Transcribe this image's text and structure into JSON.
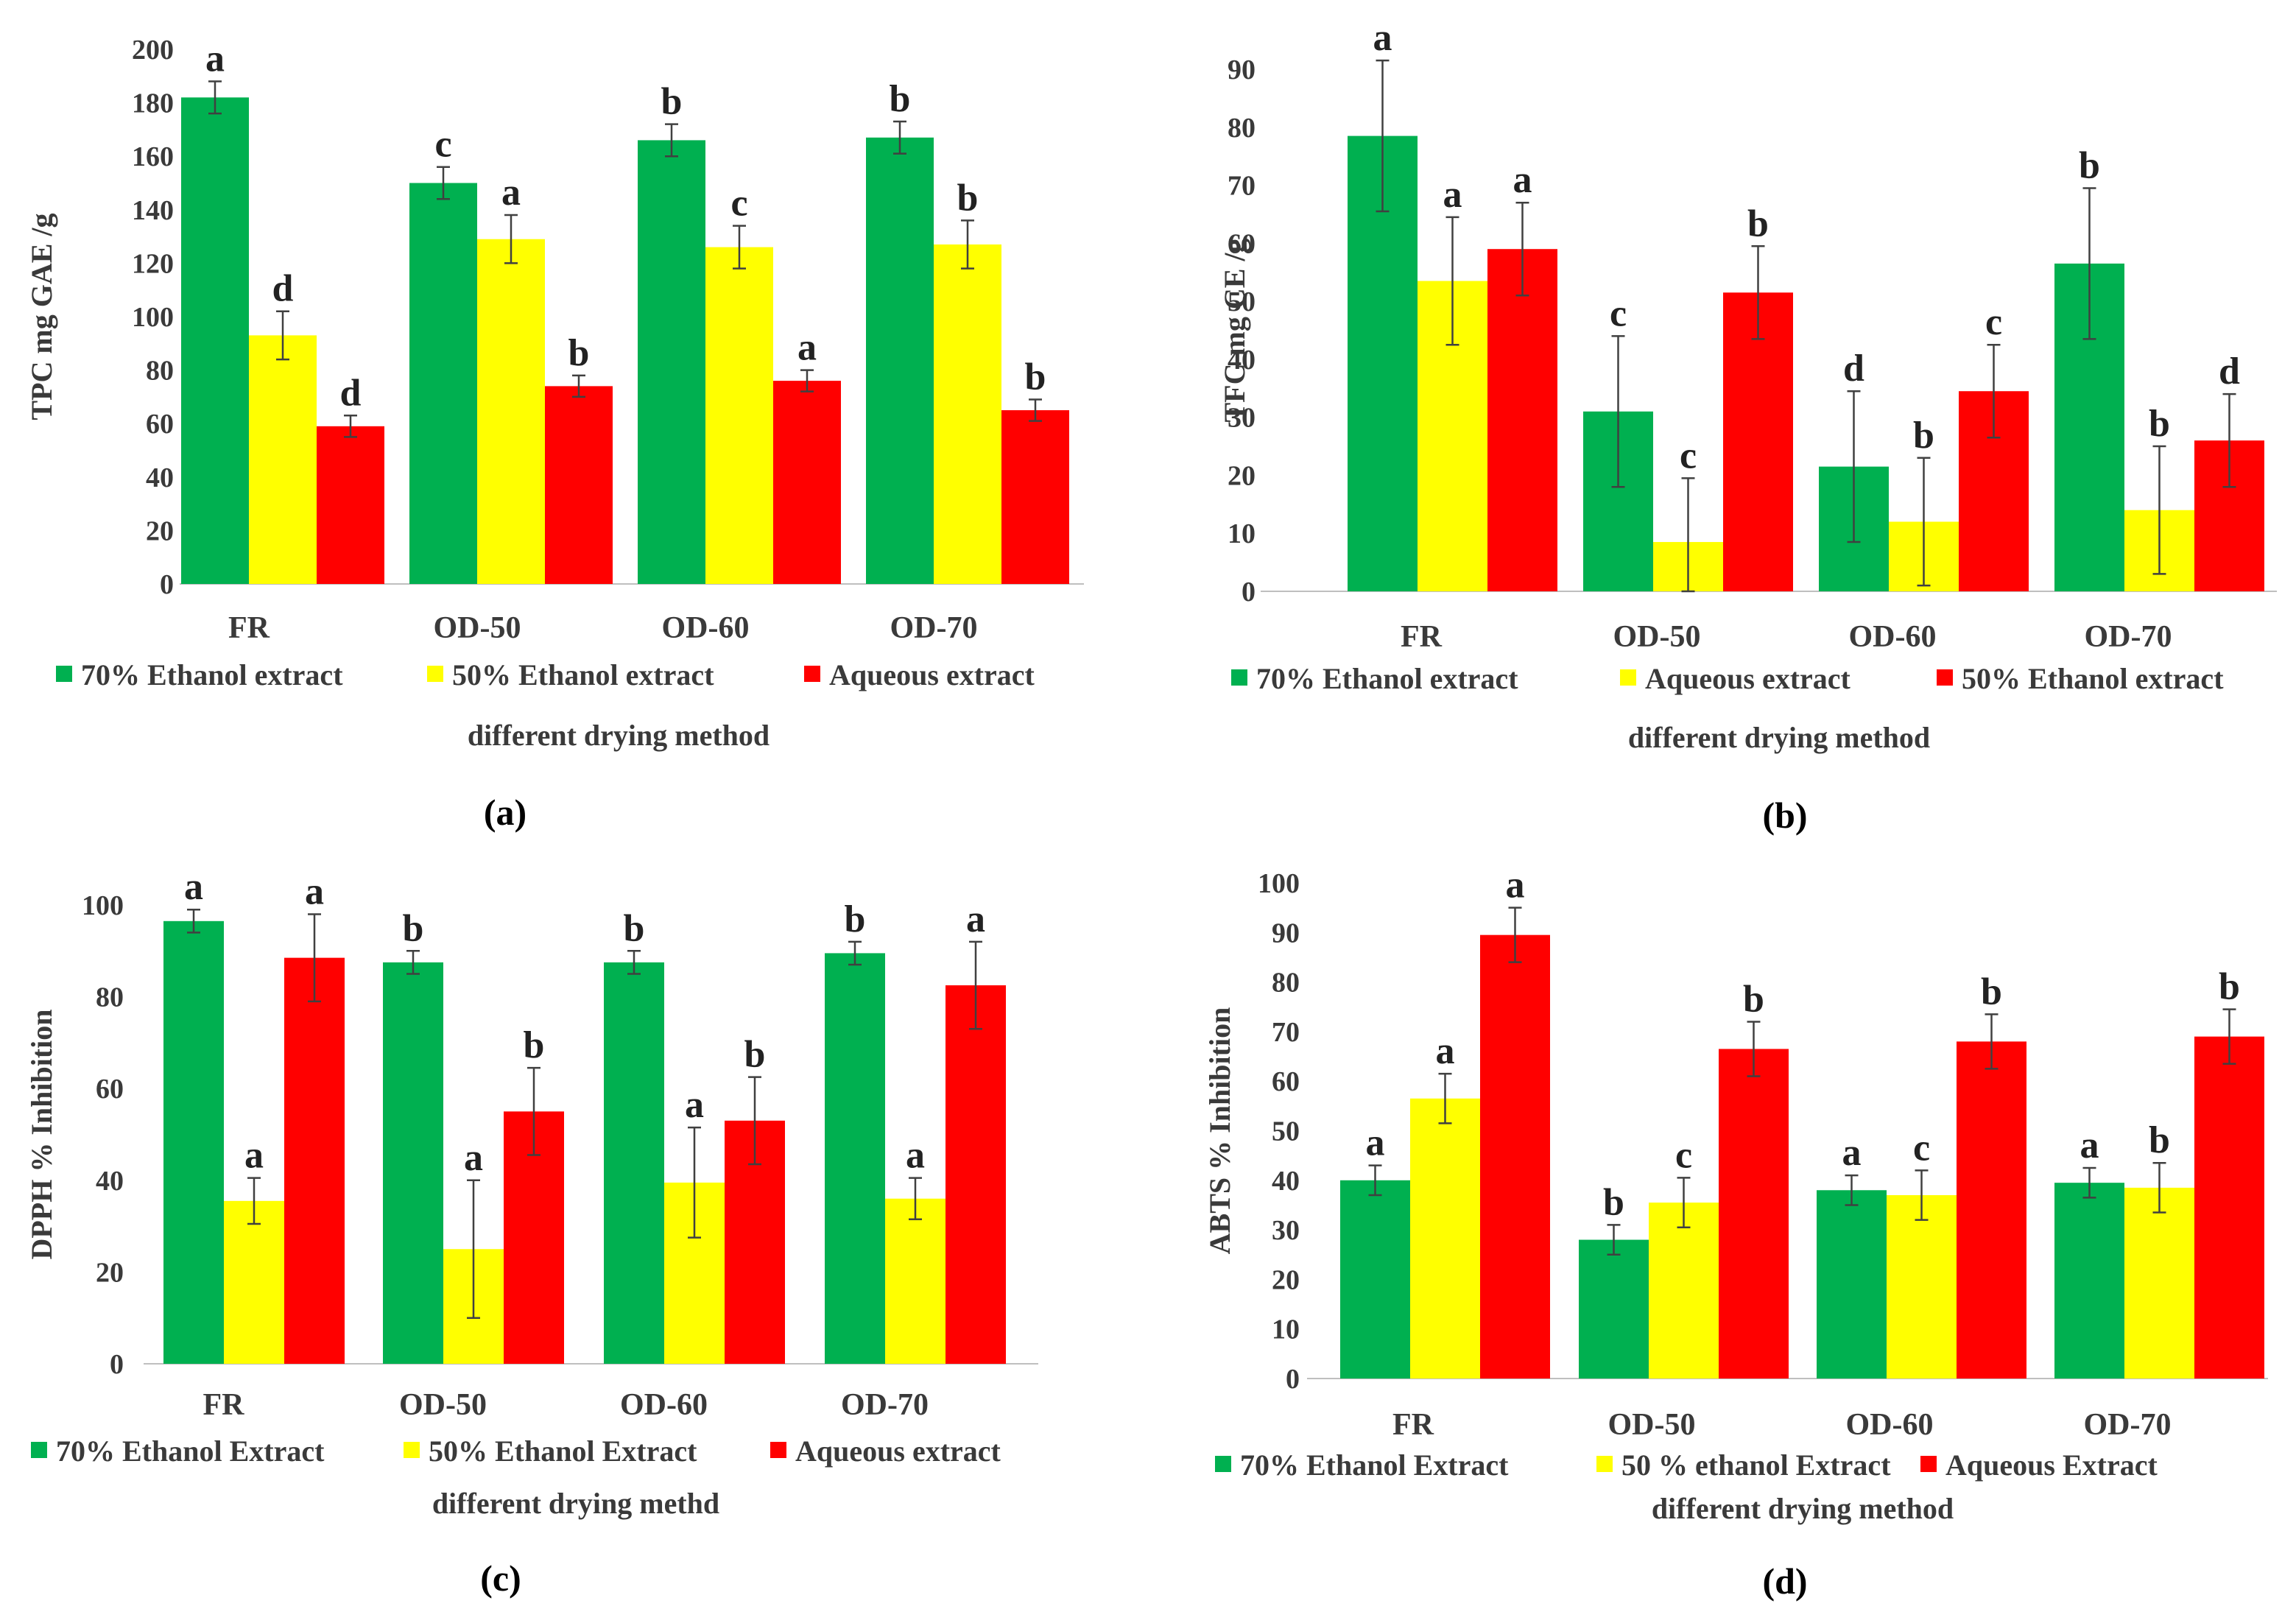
{
  "colors": {
    "green": "#00b050",
    "yellow": "#ffff00",
    "red": "#ff0000",
    "axis": "#bfbfbf",
    "error": "#404040"
  },
  "chart_data": [
    {
      "type": "bar",
      "panel_label": "(a)",
      "categories": [
        "FR",
        "OD-50",
        "OD-60",
        "OD-70"
      ],
      "ylabel": "TPC  mg GAE /g",
      "xlabel": "different drying  method",
      "ylim": [
        0,
        200
      ],
      "yticks": [
        "0",
        "20",
        "40",
        "60",
        "80",
        "100",
        "120",
        "140",
        "160",
        "180",
        "200"
      ],
      "legend_position": "bottom",
      "series": [
        {
          "name": "70% Ethanol extract",
          "color": "green",
          "values": [
            182,
            150,
            166,
            167
          ],
          "errors": [
            6,
            6,
            6,
            6
          ],
          "letters": [
            "a",
            "c",
            "b",
            "b"
          ]
        },
        {
          "name": "50% Ethanol extract",
          "color": "yellow",
          "values": [
            93,
            129,
            126,
            127
          ],
          "errors": [
            9,
            9,
            8,
            9
          ],
          "letters": [
            "d",
            "a",
            "c",
            "b"
          ]
        },
        {
          "name": "Aqueous  extract",
          "color": "red",
          "values": [
            59,
            74,
            76,
            65
          ],
          "errors": [
            4,
            4,
            4,
            4
          ],
          "letters": [
            "d",
            "b",
            "a",
            "b"
          ]
        }
      ]
    },
    {
      "type": "bar",
      "panel_label": "(b)",
      "categories": [
        "FR",
        "OD-50",
        "OD-60",
        "OD-70"
      ],
      "ylabel": "TFC mg CE /g",
      "xlabel": "different drying  method",
      "ylim": [
        0,
        90
      ],
      "yticks": [
        "0",
        "10",
        "20",
        "30",
        "40",
        "50",
        "60",
        "70",
        "80",
        "90"
      ],
      "legend_position": "bottom",
      "series": [
        {
          "name": "70% Ethanol extract",
          "color": "green",
          "values": [
            78.5,
            31,
            21.5,
            56.5
          ],
          "errors": [
            13,
            13,
            13,
            13
          ],
          "letters": [
            "a",
            "c",
            "d",
            "b"
          ]
        },
        {
          "name": "Aqueous extract",
          "color": "yellow",
          "values": [
            53.5,
            8.5,
            12,
            14
          ],
          "errors": [
            11,
            11,
            11,
            11
          ],
          "letters": [
            "a",
            "c",
            "b",
            "b"
          ]
        },
        {
          "name": "50% Ethanol extract",
          "color": "red",
          "values": [
            59,
            51.5,
            34.5,
            26
          ],
          "errors": [
            8,
            8,
            8,
            8
          ],
          "letters": [
            "a",
            "b",
            "c",
            "d"
          ]
        }
      ]
    },
    {
      "type": "bar",
      "panel_label": "(c)",
      "categories": [
        "FR",
        "OD-50",
        "OD-60",
        "OD-70"
      ],
      "ylabel": "DPPH % Inhibition",
      "xlabel": "different drying methd",
      "ylim": [
        0,
        100
      ],
      "yticks": [
        "0",
        "20",
        "40",
        "60",
        "80",
        "100"
      ],
      "legend_position": "bottom",
      "series": [
        {
          "name": "70% Ethanol Extract",
          "color": "green",
          "values": [
            96.5,
            87.5,
            87.5,
            89.5
          ],
          "errors": [
            2.5,
            2.5,
            2.5,
            2.5
          ],
          "letters": [
            "a",
            "b",
            "b",
            "b"
          ]
        },
        {
          "name": "50% Ethanol Extract",
          "color": "yellow",
          "values": [
            35.5,
            25,
            39.5,
            36
          ],
          "errors": [
            5,
            15,
            12,
            4.5
          ],
          "letters": [
            "a",
            "a",
            "a",
            "a"
          ]
        },
        {
          "name": "Aqueous extract",
          "color": "red",
          "values": [
            88.5,
            55,
            53,
            82.5
          ],
          "errors": [
            9.5,
            9.5,
            9.5,
            9.5
          ],
          "letters": [
            "a",
            "b",
            "b",
            "a"
          ]
        }
      ]
    },
    {
      "type": "bar",
      "panel_label": "(d)",
      "categories": [
        "FR",
        "OD-50",
        "OD-60",
        "OD-70"
      ],
      "ylabel": "ABTS % Inhibition",
      "xlabel": "different drying  method",
      "ylim": [
        0,
        100
      ],
      "yticks": [
        "0",
        "10",
        "20",
        "30",
        "40",
        "50",
        "60",
        "70",
        "80",
        "90",
        "100"
      ],
      "legend_position": "bottom",
      "series": [
        {
          "name": "70% Ethanol Extract",
          "color": "green",
          "values": [
            40,
            28,
            38,
            39.5
          ],
          "errors": [
            3,
            3,
            3,
            3
          ],
          "letters": [
            "a",
            "b",
            "a",
            "a"
          ]
        },
        {
          "name": "50 % ethanol Extract",
          "color": "yellow",
          "values": [
            56.5,
            35.5,
            37,
            38.5
          ],
          "errors": [
            5,
            5,
            5,
            5
          ],
          "letters": [
            "a",
            "c",
            "c",
            "b"
          ]
        },
        {
          "name": "Aqueous Extract",
          "color": "red",
          "values": [
            89.5,
            66.5,
            68,
            69
          ],
          "errors": [
            5.5,
            5.5,
            5.5,
            5.5
          ],
          "letters": [
            "a",
            "b",
            "b",
            "b"
          ]
        }
      ]
    }
  ]
}
